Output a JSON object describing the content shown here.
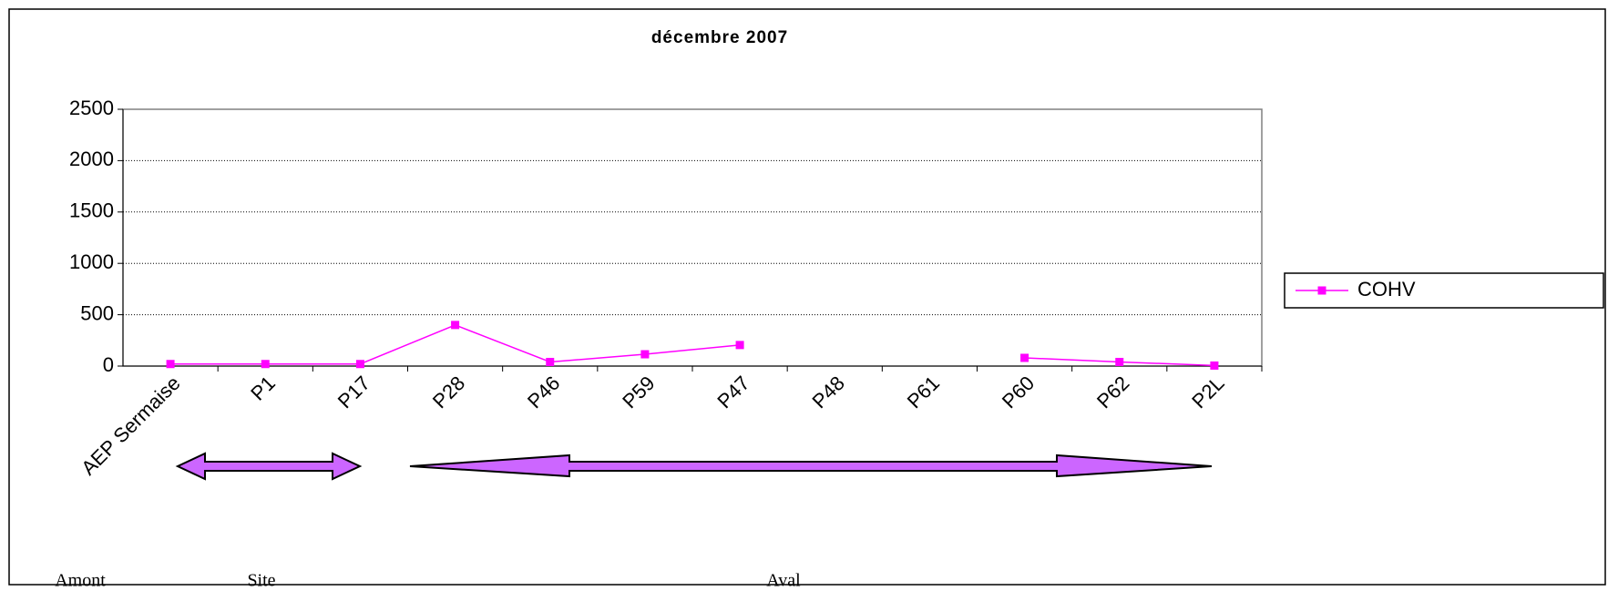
{
  "chart_data": {
    "type": "line",
    "title": "décembre 2007",
    "categories": [
      "AEP Sermaise",
      "P1",
      "P17",
      "P28",
      "P46",
      "P59",
      "P47",
      "P48",
      "P61",
      "P60",
      "P62",
      "P2L"
    ],
    "series": [
      {
        "name": "COHV",
        "color": "#ff00ff",
        "values": [
          20,
          20,
          20,
          400,
          40,
          115,
          205,
          null,
          null,
          80,
          40,
          5
        ]
      }
    ],
    "ylim": [
      0,
      2500
    ],
    "yticks": [
      0,
      500,
      1000,
      1500,
      2000,
      2500
    ],
    "grid": true,
    "legend": "right",
    "annotations": [
      "Amont",
      "Site",
      "Aval"
    ]
  }
}
